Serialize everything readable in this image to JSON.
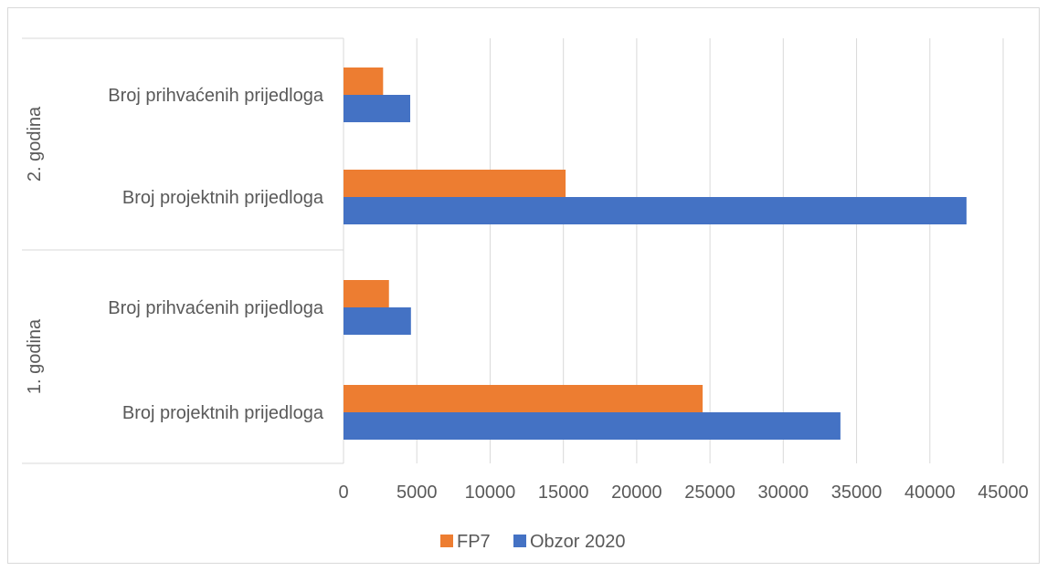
{
  "chart_data": {
    "type": "bar",
    "orientation": "horizontal",
    "groups": [
      {
        "label": "2. godina",
        "categories": [
          "Broj prihvaćenih prijedloga",
          "Broj  projektnih prijedloga"
        ],
        "series": [
          {
            "name": "FP7",
            "values": [
              2700,
              15150
            ]
          },
          {
            "name": "Obzor 2020",
            "values": [
              4550,
              42500
            ]
          }
        ]
      },
      {
        "label": "1. godina",
        "categories": [
          "Broj prihvaćenih prijedloga",
          "Broj  projektnih prijedloga"
        ],
        "series": [
          {
            "name": "FP7",
            "values": [
              3100,
              24500
            ]
          },
          {
            "name": "Obzor 2020",
            "values": [
              4600,
              33900
            ]
          }
        ]
      }
    ],
    "xlim": [
      0,
      45000
    ],
    "xticks": [
      "0",
      "5000",
      "10000",
      "15000",
      "20000",
      "25000",
      "30000",
      "35000",
      "40000",
      "45000"
    ],
    "grid": true,
    "legend_position": "bottom",
    "legend": [
      {
        "name": "FP7",
        "color": "#ED7D31"
      },
      {
        "name": "Obzor 2020",
        "color": "#4472C4"
      }
    ],
    "colors": {
      "FP7": "#ED7D31",
      "Obzor 2020": "#4472C4"
    }
  }
}
